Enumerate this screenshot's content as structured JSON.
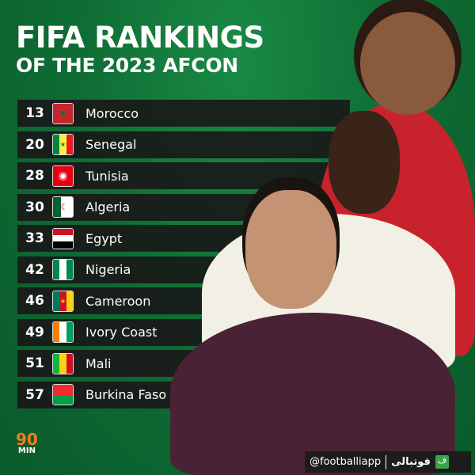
{
  "title": {
    "line1": "FIFA RANKINGS",
    "line2": "OF THE 2023 AFCON"
  },
  "rankings": [
    {
      "rank": "13",
      "country": "Morocco",
      "flag": "morocco-flag"
    },
    {
      "rank": "20",
      "country": "Senegal",
      "flag": "senegal-flag"
    },
    {
      "rank": "28",
      "country": "Tunisia",
      "flag": "tunisia-flag"
    },
    {
      "rank": "30",
      "country": "Algeria",
      "flag": "algeria-flag"
    },
    {
      "rank": "33",
      "country": "Egypt",
      "flag": "egypt-flag"
    },
    {
      "rank": "42",
      "country": "Nigeria",
      "flag": "nigeria-flag"
    },
    {
      "rank": "46",
      "country": "Cameroon",
      "flag": "cameroon-flag"
    },
    {
      "rank": "49",
      "country": "Ivory Coast",
      "flag": "ivory-coast-flag"
    },
    {
      "rank": "51",
      "country": "Mali",
      "flag": "mali-flag"
    },
    {
      "rank": "57",
      "country": "Burkina Faso",
      "flag": "burkina-faso-flag"
    }
  ],
  "logo": {
    "top": "90",
    "bottom": "MIN"
  },
  "watermark": {
    "handle": "@footballiapp",
    "brand": "فوتبالی",
    "icon": "ف"
  },
  "colors": {
    "background": "#0e6b33",
    "row": "#191919",
    "logo": "#f07a20"
  }
}
